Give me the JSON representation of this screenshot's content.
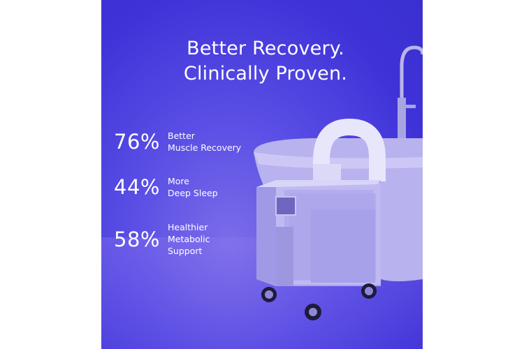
{
  "headline": {
    "line1": "Better Recovery.",
    "line2": "Clinically Proven."
  },
  "stats": [
    {
      "value": "76%",
      "lines": [
        "Better",
        "Muscle Recovery"
      ]
    },
    {
      "value": "44%",
      "lines": [
        "More",
        "Deep Sleep"
      ]
    },
    {
      "value": "58%",
      "lines": [
        "Healthier",
        "Metabolic",
        "Support"
      ]
    }
  ],
  "colors": {
    "background": "#4a3fe0",
    "text": "#ffffff",
    "device": "#c9c6f2"
  }
}
